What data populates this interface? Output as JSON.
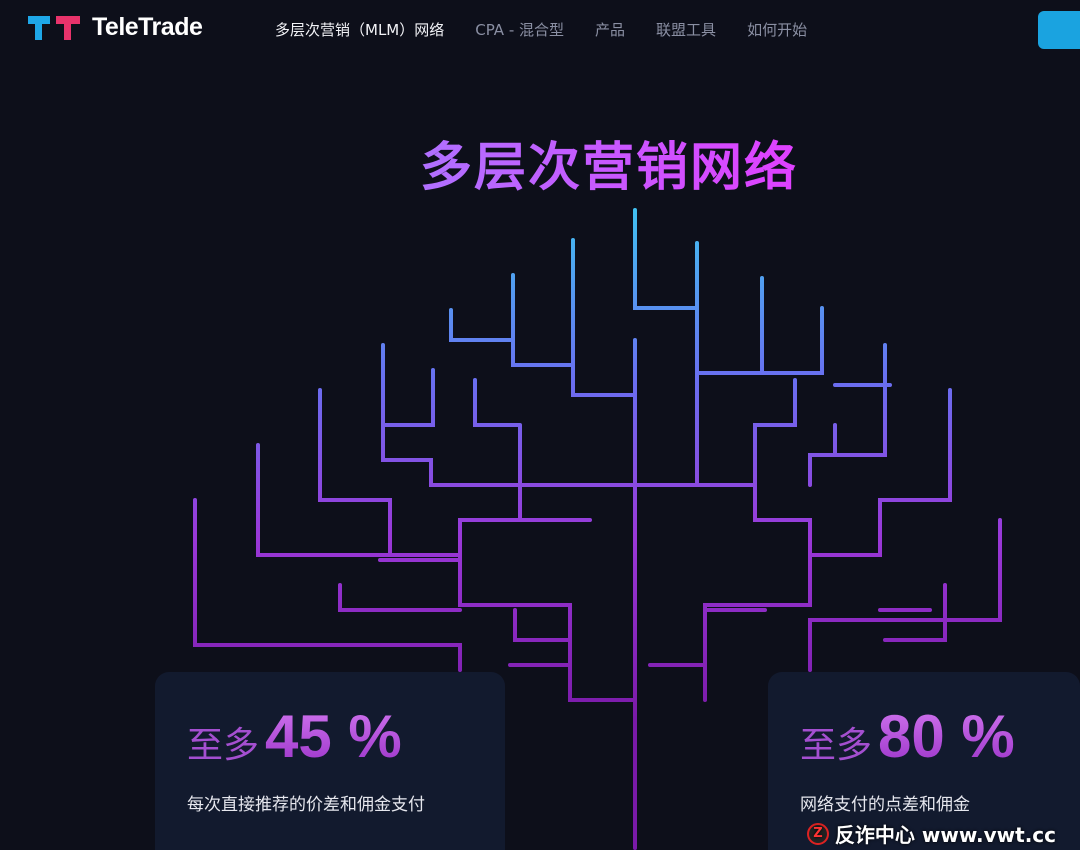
{
  "brand": {
    "name": "TeleTrade",
    "colors": {
      "blue": "#1ea7e8",
      "pink": "#e8336b"
    }
  },
  "nav": {
    "items": [
      {
        "label": "多层次营销（MLM）网络",
        "active": true
      },
      {
        "label": "CPA - 混合型",
        "active": false
      },
      {
        "label": "产品",
        "active": false
      },
      {
        "label": "联盟工具",
        "active": false
      },
      {
        "label": "如何开始",
        "active": false
      }
    ],
    "cta_color": "#1aa3e0"
  },
  "hero": {
    "title": "多层次营销网络"
  },
  "cards": [
    {
      "prefix": "至多",
      "value": "45 %",
      "description": "每次直接推荐的价差和佣金支付"
    },
    {
      "prefix": "至多",
      "value": "80 %",
      "description": "网络支付的点差和佣金"
    }
  ],
  "watermark": {
    "text": "反诈中心 www.vwt.cc"
  }
}
